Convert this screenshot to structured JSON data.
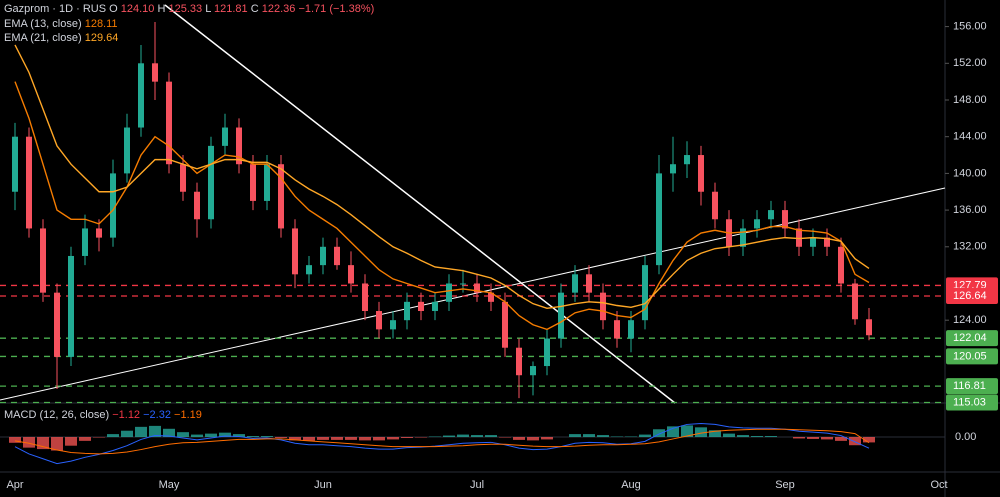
{
  "chart_data": {
    "type": "candlestick",
    "title": "Gazprom · 1D · RUS",
    "ohlc": [
      {
        "key": "O",
        "value": "124.10"
      },
      {
        "key": "H",
        "value": "125.33"
      },
      {
        "key": "L",
        "value": "121.81"
      },
      {
        "key": "C",
        "value": "122.36"
      }
    ],
    "change": "−1.71 (−1.38%)",
    "up_color": "#22ab94",
    "down_color": "#f7525f",
    "categories": [
      "Apr",
      null,
      null,
      null,
      null,
      null,
      null,
      null,
      null,
      null,
      null,
      "May",
      null,
      null,
      null,
      null,
      null,
      null,
      null,
      null,
      null,
      null,
      "Jun",
      null,
      null,
      null,
      null,
      null,
      null,
      null,
      null,
      null,
      null,
      "Jul",
      null,
      null,
      null,
      null,
      null,
      null,
      null,
      null,
      null,
      null,
      "Aug",
      null,
      null,
      null,
      null,
      null,
      null,
      null,
      null,
      null,
      null,
      "Sep",
      null,
      null,
      null,
      null,
      null,
      null,
      null,
      null,
      null,
      null,
      "Oct"
    ],
    "open": [
      138,
      144,
      134,
      127,
      120,
      131,
      134,
      133,
      140,
      145,
      152,
      150,
      141,
      138,
      135,
      143,
      145,
      141,
      137,
      141,
      134,
      129,
      130,
      132,
      130,
      128,
      125,
      123,
      124,
      126,
      125,
      126,
      128,
      128,
      127,
      126,
      121,
      118,
      119,
      122,
      127,
      129,
      127,
      124,
      122,
      124,
      130,
      140,
      141,
      142,
      138,
      135,
      132,
      134,
      135,
      136,
      134,
      132,
      133,
      132,
      128,
      124.1,
      null,
      null,
      null,
      null,
      null
    ],
    "high": [
      145.5,
      145,
      135,
      128,
      132,
      135.5,
      135,
      141.5,
      146.5,
      154,
      156.5,
      151,
      142,
      139,
      144,
      146.5,
      146,
      142,
      142,
      142,
      135,
      131,
      133,
      133,
      131.5,
      129,
      126,
      125,
      127,
      127,
      127,
      129,
      129.5,
      129,
      128,
      127,
      122,
      119.5,
      123,
      128,
      130,
      130,
      128,
      125,
      125,
      131,
      142,
      144,
      143.5,
      143,
      139,
      136,
      135,
      136,
      137,
      137,
      135,
      134,
      134,
      133,
      128.5,
      125.33,
      null,
      null,
      null,
      null,
      null
    ],
    "low": [
      136,
      133,
      126,
      116.5,
      119,
      130,
      131.5,
      132,
      139,
      144,
      148,
      140,
      137,
      133,
      134,
      142,
      140,
      136,
      136,
      133,
      127.5,
      128,
      129,
      129.5,
      127,
      124,
      122,
      122,
      123,
      124,
      124,
      125,
      127,
      126,
      125,
      120,
      115.5,
      115.8,
      118,
      121,
      126,
      126,
      123,
      121,
      120.5,
      123,
      129,
      138,
      139.5,
      136.5,
      134,
      131,
      131,
      133,
      134,
      133,
      131,
      131,
      131,
      127,
      123.5,
      121.81,
      null,
      null,
      null,
      null,
      null
    ],
    "close": [
      144,
      134,
      127,
      120,
      131,
      134,
      133,
      140,
      145,
      152,
      150,
      141,
      138,
      135,
      143,
      145,
      141,
      137,
      141,
      134,
      129,
      130,
      132,
      130,
      128,
      125,
      123,
      124,
      126,
      125,
      126,
      128,
      128,
      127,
      126,
      121,
      118,
      119,
      122,
      127,
      129,
      127,
      124,
      122,
      124,
      130,
      140,
      141,
      142,
      138,
      135,
      132,
      134,
      135,
      136,
      134,
      132,
      133,
      132,
      128,
      124.1,
      122.36,
      null,
      null,
      null,
      null,
      null
    ],
    "indicators": [
      {
        "name": "EMA (13, close)",
        "last": "128.11",
        "color": "#f57c00",
        "values": [
          150,
          146,
          141,
          136,
          135,
          135,
          134.5,
          136,
          138.5,
          142,
          144,
          143,
          141.5,
          140,
          141,
          142,
          141.8,
          141,
          141,
          139.5,
          137.5,
          136,
          135,
          134,
          132.5,
          131,
          129.5,
          128.5,
          128,
          127.5,
          127,
          127.2,
          127.4,
          127.2,
          127,
          126,
          124.5,
          123.5,
          123,
          123.8,
          124.8,
          125.2,
          125,
          124.5,
          124.3,
          125.2,
          128,
          130.5,
          132.5,
          133.5,
          133.8,
          133.5,
          133.6,
          133.8,
          134.2,
          134.2,
          133.8,
          133.7,
          133.5,
          132.6,
          129,
          128.11,
          null,
          null,
          null,
          null,
          null
        ]
      },
      {
        "name": "EMA (21, close)",
        "last": "129.64",
        "color": "#ffa726",
        "values": [
          154,
          151,
          147,
          143,
          141,
          139.5,
          138,
          138,
          138.5,
          140,
          141.5,
          141.5,
          141,
          140.5,
          141,
          141.5,
          141.5,
          141.2,
          141.2,
          140.5,
          139.3,
          138.3,
          137.5,
          136.6,
          135.5,
          134.3,
          133.1,
          132,
          131.3,
          130.5,
          129.8,
          129.6,
          129.4,
          129,
          128.6,
          127.8,
          126.7,
          125.8,
          125.3,
          125.5,
          125.8,
          126,
          125.9,
          125.6,
          125.4,
          125.8,
          127.4,
          129,
          130.5,
          131.3,
          131.8,
          132,
          132.2,
          132.5,
          132.8,
          133,
          132.9,
          133,
          132.9,
          132.6,
          130.7,
          129.64,
          null,
          null,
          null,
          null,
          null
        ]
      }
    ],
    "levels": [
      {
        "value": 127.79,
        "color": "#f23645"
      },
      {
        "value": 126.64,
        "color": "#f23645"
      },
      {
        "value": 122.04,
        "color": "#4caf50"
      },
      {
        "value": 120.05,
        "color": "#4caf50"
      },
      {
        "value": 116.81,
        "color": "#4caf50"
      },
      {
        "value": 115.03,
        "color": "#4caf50"
      }
    ],
    "ylim": [
      115.3,
      158.9
    ],
    "yticks": [
      {
        "value": 124,
        "label": "124.00"
      },
      {
        "value": 132,
        "label": "132.00"
      },
      {
        "value": 136,
        "label": "136.00"
      },
      {
        "value": 140,
        "label": "140.00"
      },
      {
        "value": 144,
        "label": "144.00"
      },
      {
        "value": 148,
        "label": "148.00"
      },
      {
        "value": 152,
        "label": "152.00"
      },
      {
        "value": 156,
        "label": "156.00"
      }
    ],
    "macd": {
      "name": "MACD (12, 26, close)",
      "last": [
        {
          "value": "−1.12",
          "color": "#f23645"
        },
        {
          "value": "−2.32",
          "color": "#2962ff"
        },
        {
          "value": "−1.19",
          "color": "#ff6d00"
        }
      ],
      "ylim": [
        -6,
        6
      ],
      "yticks": [
        {
          "value": 0,
          "label": "0.00"
        }
      ],
      "histogram": [
        -1.2,
        -2.2,
        -2.5,
        -2.8,
        -1.8,
        -0.8,
        -0.1,
        0.6,
        1.3,
        2.1,
        2.3,
        1.7,
        1,
        0.5,
        0.7,
        0.9,
        0.6,
        0.2,
        0.2,
        -0.2,
        -0.7,
        -0.8,
        -0.6,
        -0.6,
        -0.6,
        -0.7,
        -0.7,
        -0.5,
        -0.2,
        -0.1,
        0.1,
        0.3,
        0.5,
        0.4,
        0.4,
        -0.1,
        -0.6,
        -0.7,
        -0.5,
        0,
        0.6,
        0.6,
        0.4,
        0.1,
        0.1,
        0.5,
        1.6,
        2.2,
        2.4,
        2,
        1.4,
        0.7,
        0.4,
        0.2,
        0.2,
        0,
        -0.3,
        -0.4,
        -0.5,
        -0.8,
        -1.7,
        -1.12,
        null,
        null,
        null,
        null,
        null
      ],
      "lines": [
        {
          "color": "#2962ff",
          "values": [
            -2,
            -3.5,
            -4.5,
            -5.5,
            -5,
            -4.2,
            -3.6,
            -2.8,
            -1.8,
            -0.5,
            0.3,
            0.2,
            -0.2,
            -0.6,
            -0.2,
            0.2,
            0.1,
            -0.3,
            -0.2,
            -0.6,
            -1.3,
            -1.6,
            -1.6,
            -1.8,
            -2,
            -2.3,
            -2.5,
            -2.5,
            -2.2,
            -2.1,
            -1.9,
            -1.6,
            -1.3,
            -1.2,
            -1.1,
            -1.6,
            -2.3,
            -2.6,
            -2.5,
            -2,
            -1.3,
            -1.1,
            -1.2,
            -1.5,
            -1.4,
            -0.9,
            0.6,
            1.8,
            2.6,
            2.8,
            2.6,
            2.1,
            1.9,
            1.8,
            1.8,
            1.6,
            1.2,
            1,
            0.8,
            0.3,
            -1,
            -2.32,
            null,
            null,
            null,
            null,
            null
          ]
        },
        {
          "color": "#ff6d00",
          "values": [
            -0.8,
            -1.3,
            -2,
            -2.7,
            -3.2,
            -3.4,
            -3.5,
            -3.4,
            -3.1,
            -2.6,
            -2,
            -1.5,
            -1.2,
            -1.1,
            -0.9,
            -0.7,
            -0.5,
            -0.5,
            -0.4,
            -0.4,
            -0.6,
            -0.8,
            -1,
            -1.2,
            -1.4,
            -1.6,
            -1.8,
            -2,
            -2,
            -2,
            -2,
            -1.9,
            -1.8,
            -1.6,
            -1.5,
            -1.5,
            -1.7,
            -1.9,
            -2,
            -2,
            -1.9,
            -1.7,
            -1.6,
            -1.6,
            -1.5,
            -1.4,
            -1,
            -0.4,
            0.2,
            0.8,
            1.2,
            1.4,
            1.5,
            1.6,
            1.6,
            1.6,
            1.5,
            1.4,
            1.3,
            1.1,
            0.7,
            -1.19,
            null,
            null,
            null,
            null,
            null
          ]
        }
      ]
    }
  }
}
